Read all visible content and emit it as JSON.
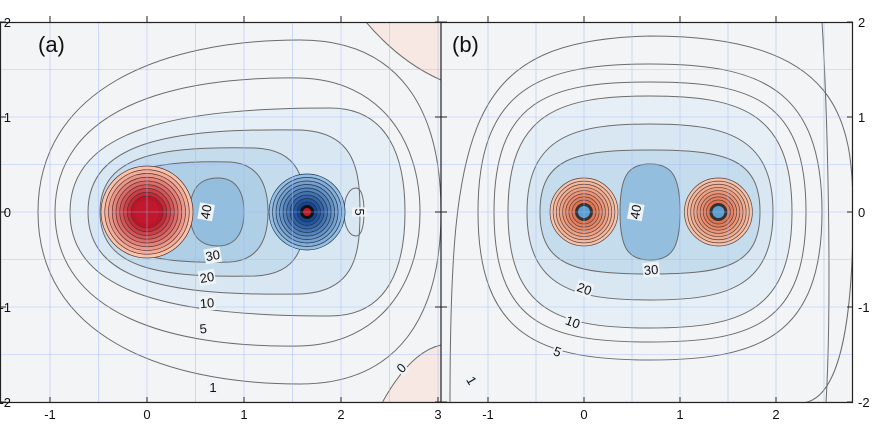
{
  "chart_data": [
    {
      "type": "contour",
      "panel_label": "(a)",
      "xlim": [
        -1.1,
        3.05
      ],
      "ylim": [
        -2,
        2
      ],
      "x_ticks": [
        "-1",
        "0",
        "1",
        "2",
        "3"
      ],
      "y_ticks": [
        "-2",
        "-1",
        "0",
        "1",
        "2"
      ],
      "grid": true,
      "colors": {
        "positive": "#c0182d",
        "negative": "#1f5aa0",
        "background": "#f3f4f5",
        "contour_line": "#6b6b6b",
        "grid": "#9bb8ff"
      },
      "sources": [
        {
          "name": "positive-source",
          "x": 0,
          "y": 0,
          "sign": 1
        },
        {
          "name": "negative-source",
          "x": 1.65,
          "y": 0,
          "sign": -1
        }
      ],
      "contour_levels": [
        "1",
        "5",
        "10",
        "20",
        "30",
        "40",
        "0"
      ],
      "contour_labels": [
        {
          "text": "40",
          "x": 0.62,
          "y": 0.0,
          "rotate": -80
        },
        {
          "text": "30",
          "x": 0.68,
          "y": -0.47,
          "rotate": -10
        },
        {
          "text": "20",
          "x": 0.62,
          "y": -0.7,
          "rotate": -10
        },
        {
          "text": "10",
          "x": 0.62,
          "y": -0.97,
          "rotate": -5
        },
        {
          "text": "5",
          "x": 0.58,
          "y": -1.24,
          "rotate": -5
        },
        {
          "text": "5",
          "x": 2.18,
          "y": 0.0,
          "rotate": 90
        },
        {
          "text": "1",
          "x": 0.68,
          "y": -1.86,
          "rotate": 0
        },
        {
          "text": "0",
          "x": 2.63,
          "y": -1.65,
          "rotate": -45
        }
      ]
    },
    {
      "type": "contour",
      "panel_label": "(b)",
      "xlim": [
        -1.45,
        2.85
      ],
      "ylim": [
        -2,
        2
      ],
      "x_ticks": [
        "-1",
        "0",
        "1",
        "2"
      ],
      "y_ticks": [
        "-2",
        "-1",
        "0",
        "1",
        "2"
      ],
      "grid": true,
      "colors": {
        "positive": "#e98062",
        "negative": "#5f9fd0",
        "background": "#f3f4f5",
        "contour_line": "#6b6b6b",
        "grid": "#9bb8ff"
      },
      "sources": [
        {
          "name": "left-source",
          "x": 0,
          "y": 0,
          "sign": 1
        },
        {
          "name": "right-source",
          "x": 1.4,
          "y": 0,
          "sign": 1
        }
      ],
      "contour_levels": [
        "1",
        "5",
        "10",
        "20",
        "30",
        "40"
      ],
      "contour_labels": [
        {
          "text": "40",
          "x": 0.55,
          "y": 0.0,
          "rotate": -80
        },
        {
          "text": "30",
          "x": 0.7,
          "y": -0.62,
          "rotate": -5
        },
        {
          "text": "20",
          "x": 0.0,
          "y": -0.82,
          "rotate": 20
        },
        {
          "text": "10",
          "x": -0.12,
          "y": -1.17,
          "rotate": 20
        },
        {
          "text": "5",
          "x": -0.28,
          "y": -1.48,
          "rotate": 20
        },
        {
          "text": "1",
          "x": -1.18,
          "y": -1.78,
          "rotate": 60
        }
      ]
    }
  ]
}
